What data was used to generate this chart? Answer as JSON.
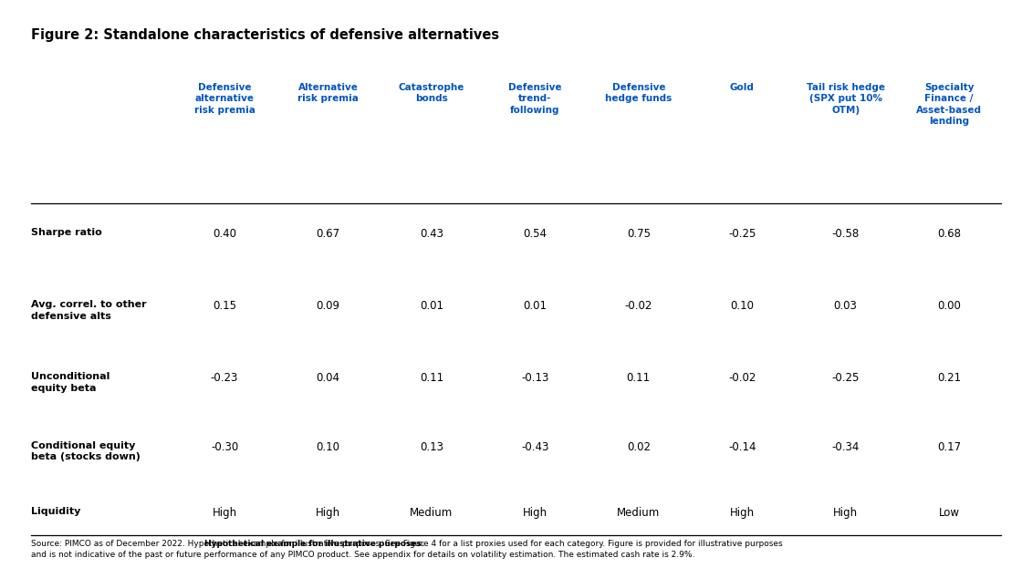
{
  "title": "Figure 2: Standalone characteristics of defensive alternatives",
  "col_headers": [
    "Defensive\nalternative\nrisk premia",
    "Alternative\nrisk premia",
    "Catastrophe\nbonds",
    "Defensive\ntrend-\nfollowing",
    "Defensive\nhedge funds",
    "Gold",
    "Tail risk hedge\n(SPX put 10%\nOTM)",
    "Specialty\nFinance /\nAsset-based\nlending"
  ],
  "row_labels": [
    "Sharpe ratio",
    "Avg. correl. to other\ndefensive alts",
    "Unconditional\nequity beta",
    "Conditional equity\nbeta (stocks down)",
    "Liquidity"
  ],
  "table_data": [
    [
      "0.40",
      "0.67",
      "0.43",
      "0.54",
      "0.75",
      "-0.25",
      "-0.58",
      "0.68"
    ],
    [
      "0.15",
      "0.09",
      "0.01",
      "0.01",
      "-0.02",
      "0.10",
      "0.03",
      "0.00"
    ],
    [
      "-0.23",
      "0.04",
      "0.11",
      "-0.13",
      "0.11",
      "-0.02",
      "-0.25",
      "0.21"
    ],
    [
      "-0.30",
      "0.10",
      "0.13",
      "-0.43",
      "0.02",
      "-0.14",
      "-0.34",
      "0.17"
    ],
    [
      "High",
      "High",
      "Medium",
      "High",
      "Medium",
      "High",
      "High",
      "Low"
    ]
  ],
  "header_color": "#0055BB",
  "title_color": "#000000",
  "row_label_color": "#000000",
  "data_color": "#000000",
  "bg_color": "#ffffff",
  "line_color": "#000000",
  "footer_normal1": "Source: PIMCO as of December 2022. ",
  "footer_bold": "Hypothetical example for illustrative purposes.",
  "footer_normal2": " See Figure 4 for a list proxies used for each category. Figure is provided for illustrative purposes",
  "footer_line2": "and is not indicative of the past or future performance of any PIMCO product. See appendix for details on volatility estimation. The estimated cash rate is 2.9%.",
  "title_fontsize": 10.5,
  "header_fontsize": 7.5,
  "row_label_fontsize": 8.0,
  "data_fontsize": 8.5,
  "footer_fontsize": 6.5
}
